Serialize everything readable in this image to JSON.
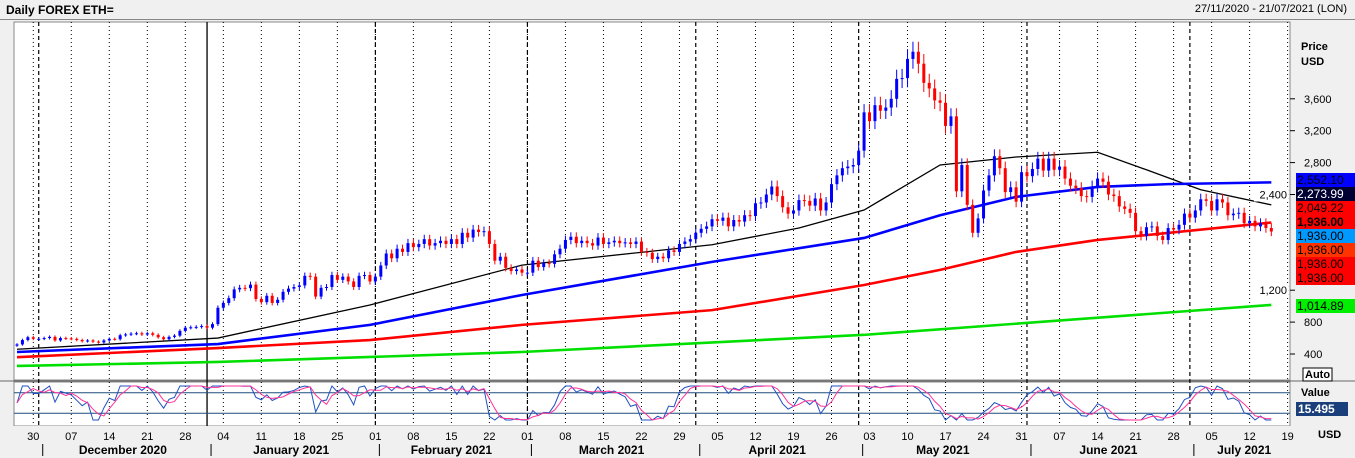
{
  "header": {
    "title": "Daily FOREX ETH=",
    "range": "27/11/2020 - 21/07/2021 (LON)"
  },
  "axis": {
    "price_label": "Price",
    "currency": "USD",
    "auto_label": "Auto",
    "osc_label": "Value",
    "osc_currency": "USD"
  },
  "chart_data": {
    "type": "candlestick",
    "title": "Daily FOREX ETH=",
    "start_date": "2020-11-27",
    "ylabel": "Price USD",
    "ylim": [
      0,
      4400
    ],
    "yticks": [
      400,
      800,
      1200,
      2400,
      2800,
      3200,
      3600
    ],
    "closes": [
      520,
      575,
      610,
      590,
      590,
      600,
      615,
      570,
      600,
      595,
      590,
      575,
      560,
      570,
      555,
      545,
      570,
      590,
      585,
      635,
      645,
      655,
      660,
      645,
      660,
      640,
      610,
      585,
      615,
      630,
      690,
      730,
      735,
      740,
      750,
      730,
      775,
      980,
      1040,
      1100,
      1210,
      1230,
      1225,
      1270,
      1090,
      1050,
      1130,
      1040,
      1080,
      1180,
      1220,
      1240,
      1260,
      1380,
      1370,
      1120,
      1230,
      1240,
      1390,
      1330,
      1370,
      1310,
      1240,
      1380,
      1390,
      1310,
      1370,
      1510,
      1660,
      1600,
      1720,
      1680,
      1790,
      1740,
      1780,
      1840,
      1760,
      1790,
      1820,
      1780,
      1840,
      1780,
      1920,
      1860,
      1960,
      1930,
      1940,
      1780,
      1570,
      1620,
      1480,
      1440,
      1460,
      1420,
      1420,
      1570,
      1490,
      1540,
      1530,
      1650,
      1720,
      1830,
      1870,
      1790,
      1820,
      1790,
      1760,
      1860,
      1780,
      1800,
      1820,
      1790,
      1800,
      1780,
      1810,
      1680,
      1670,
      1590,
      1620,
      1600,
      1700,
      1680,
      1780,
      1810,
      1840,
      1920,
      1970,
      2000,
      2090,
      2070,
      2110,
      2000,
      2080,
      2060,
      2140,
      2130,
      2290,
      2300,
      2400,
      2500,
      2380,
      2240,
      2160,
      2200,
      2330,
      2320,
      2260,
      2350,
      2200,
      2300,
      2530,
      2640,
      2730,
      2750,
      2770,
      2950,
      3430,
      3320,
      3520,
      3450,
      3490,
      3600,
      3850,
      3860,
      4100,
      4190,
      4040,
      3800,
      3730,
      3580,
      3550,
      3260,
      3380,
      2440,
      2770,
      2270,
      1920,
      2100,
      2450,
      2640,
      2880,
      2730,
      2430,
      2490,
      2310,
      2680,
      2630,
      2720,
      2850,
      2700,
      2850,
      2710,
      2750,
      2600,
      2510,
      2480,
      2380,
      2370,
      2500,
      2600,
      2560,
      2400,
      2380,
      2250,
      2220,
      2170,
      1940,
      1880,
      1990,
      2000,
      1880,
      1830,
      1980,
      1960,
      2020,
      2160,
      2110,
      2200,
      2340,
      2320,
      2200,
      2340,
      2300,
      2140,
      2160,
      2170,
      2040,
      2070,
      2000,
      2040,
      1980,
      1936
    ],
    "moving_averages": [
      {
        "name": "black",
        "color": "#000000",
        "last": "2,273.99",
        "points": [
          [
            0,
            460
          ],
          [
            37,
            600
          ],
          [
            65,
            1015
          ],
          [
            93,
            1515
          ],
          [
            128,
            1770
          ],
          [
            144,
            1980
          ],
          [
            156,
            2205
          ],
          [
            170,
            2770
          ],
          [
            184,
            2870
          ],
          [
            199,
            2930
          ],
          [
            208,
            2710
          ],
          [
            218,
            2460
          ],
          [
            231,
            2270
          ]
        ]
      },
      {
        "name": "blue",
        "color": "#0000ff",
        "last": "2,552.10",
        "points": [
          [
            0,
            425
          ],
          [
            37,
            525
          ],
          [
            65,
            765
          ],
          [
            93,
            1140
          ],
          [
            128,
            1555
          ],
          [
            156,
            1855
          ],
          [
            170,
            2140
          ],
          [
            184,
            2370
          ],
          [
            199,
            2495
          ],
          [
            212,
            2530
          ],
          [
            231,
            2552
          ]
        ]
      },
      {
        "name": "red",
        "color": "#ff0000",
        "last": "2,049.22",
        "points": [
          [
            0,
            360
          ],
          [
            37,
            475
          ],
          [
            65,
            575
          ],
          [
            93,
            765
          ],
          [
            128,
            950
          ],
          [
            156,
            1265
          ],
          [
            170,
            1455
          ],
          [
            184,
            1680
          ],
          [
            199,
            1830
          ],
          [
            231,
            2049
          ]
        ]
      },
      {
        "name": "green",
        "color": "#00e000",
        "last": "1,014.89",
        "points": [
          [
            0,
            250
          ],
          [
            37,
            300
          ],
          [
            93,
            425
          ],
          [
            156,
            640
          ],
          [
            231,
            1015
          ]
        ]
      }
    ],
    "price_labels": [
      {
        "text": "2,552.10",
        "bg": "#0000ff",
        "fg": "#000000"
      },
      {
        "text": "2,273.99",
        "bg": "#000033",
        "fg": "#ffffff"
      },
      {
        "text": "2,049.22",
        "bg": "#ff0000",
        "fg": "#000000"
      },
      {
        "text": "1,936.00",
        "bg": "#ff0000",
        "fg": "#000000",
        "bold": true
      },
      {
        "text": "1,936.00",
        "bg": "#0099ff",
        "fg": "#000000"
      },
      {
        "text": "1,936.00",
        "bg": "#ff3300",
        "fg": "#000000"
      },
      {
        "text": "1,936.00",
        "bg": "#ff0000",
        "fg": "#000000"
      },
      {
        "text": "1,936.00",
        "bg": "#ff0000",
        "fg": "#000000"
      },
      {
        "text": "1,014.89",
        "bg": "#00ee00",
        "fg": "#000000"
      }
    ],
    "oscillator": {
      "last": "15.495",
      "levels": [
        80,
        20
      ]
    },
    "x_ticks": [
      [
        "30",
        3
      ],
      [
        "07",
        10
      ],
      [
        "14",
        17
      ],
      [
        "21",
        24
      ],
      [
        "28",
        31
      ],
      [
        "04",
        38
      ],
      [
        "11",
        45
      ],
      [
        "18",
        52
      ],
      [
        "25",
        59
      ],
      [
        "01",
        66
      ],
      [
        "08",
        73
      ],
      [
        "15",
        80
      ],
      [
        "22",
        87
      ],
      [
        "01",
        94
      ],
      [
        "08",
        101
      ],
      [
        "15",
        108
      ],
      [
        "22",
        115
      ],
      [
        "29",
        122
      ],
      [
        "05",
        129
      ],
      [
        "12",
        136
      ],
      [
        "19",
        143
      ],
      [
        "26",
        150
      ],
      [
        "03",
        157
      ],
      [
        "10",
        164
      ],
      [
        "17",
        171
      ],
      [
        "24",
        178
      ],
      [
        "31",
        185
      ],
      [
        "07",
        192
      ],
      [
        "14",
        199
      ],
      [
        "21",
        206
      ],
      [
        "28",
        213
      ],
      [
        "05",
        220
      ],
      [
        "12",
        227
      ],
      [
        "19",
        234
      ]
    ],
    "months": [
      [
        "December 2020",
        4,
        35
      ],
      [
        "January 2021",
        35,
        66
      ],
      [
        "February 2021",
        66,
        94
      ],
      [
        "March 2021",
        94,
        125
      ],
      [
        "April 2021",
        125,
        155
      ],
      [
        "May 2021",
        155,
        186
      ],
      [
        "June 2021",
        186,
        216
      ],
      [
        "July 2021",
        216,
        236
      ]
    ],
    "colors": {
      "up": "#0000ff",
      "down": "#ff0000"
    }
  }
}
